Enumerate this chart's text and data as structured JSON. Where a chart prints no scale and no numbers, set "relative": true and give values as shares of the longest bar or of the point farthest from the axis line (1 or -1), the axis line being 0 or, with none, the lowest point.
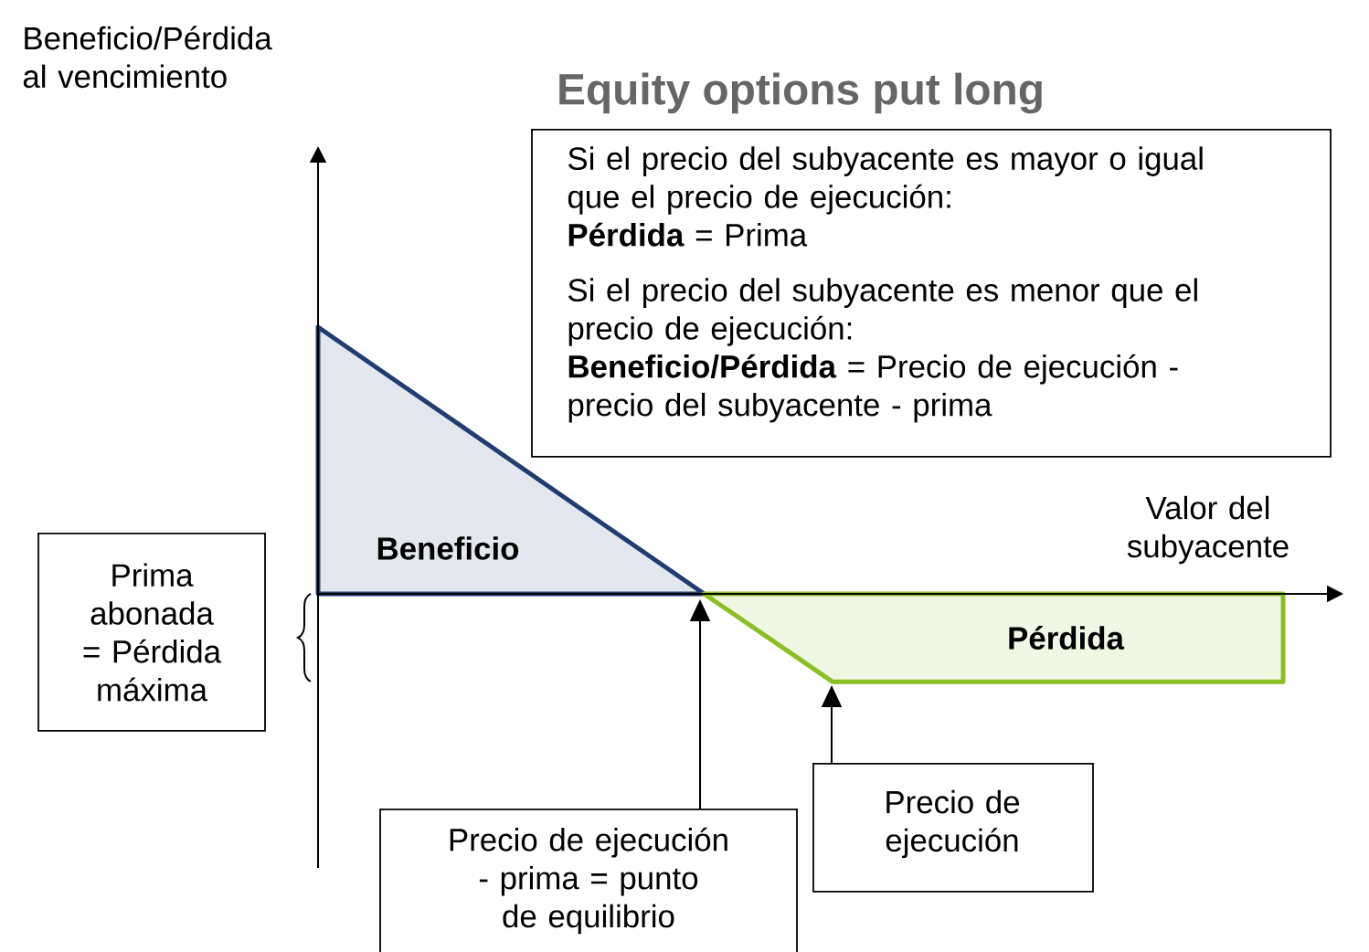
{
  "chart_data": {
    "type": "area",
    "title": "Equity options put long",
    "xlabel": "Valor del subyacente",
    "relative": true,
    "categories": [
      null,
      null,
      null,
      null,
      null,
      null,
      null,
      null,
      null,
      null,
      null,
      null,
      null,
      null,
      null,
      null
    ],
    "series": [
      {
        "name": "Beneficio",
        "color": "#1f3d73",
        "values": [
          1,
          0.833,
          0.667,
          0.5,
          0.333,
          0.167,
          0,
          null,
          null,
          null,
          null,
          null,
          null,
          null,
          null,
          null
        ]
      },
      {
        "name": "Pérdida",
        "color": "#8cbf26",
        "values": [
          null,
          null,
          null,
          null,
          null,
          null,
          0,
          -0.165,
          -0.33,
          -0.33,
          -0.33,
          -0.33,
          -0.33,
          -0.33,
          -0.33,
          -0.33
        ]
      }
    ],
    "annotations": [
      "Si el precio del subyacente es mayor o igual que el precio de ejecución:",
      "**Pérdida** = Prima",
      "Si el precio del subyacente es menor que el precio de ejecución:",
      "**Beneficio/Pérdida** = Precio de ejecución - precio del subyacente - prima",
      "Prima abonada = Pérdida máxima",
      "Precio de ejecución - prima = punto de equilibrio",
      "Precio de ejecución",
      "Beneficio/Pérdida al vencimiento"
    ]
  }
}
